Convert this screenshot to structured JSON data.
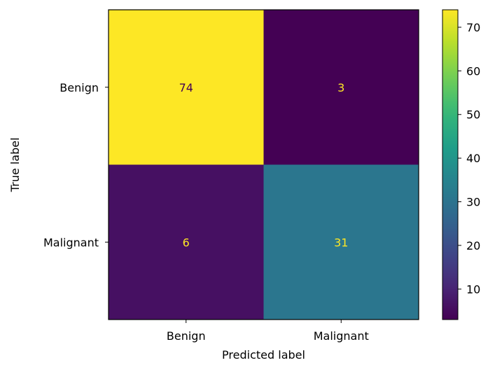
{
  "chart_data": {
    "type": "heatmap",
    "title": "",
    "xlabel": "Predicted label",
    "ylabel": "True label",
    "x_categories": [
      "Benign",
      "Malignant"
    ],
    "y_categories": [
      "Benign",
      "Malignant"
    ],
    "values": [
      [
        74,
        3
      ],
      [
        6,
        31
      ]
    ],
    "colorbar": {
      "min": 3,
      "max": 74,
      "ticks": [
        10,
        20,
        30,
        40,
        50,
        60,
        70
      ],
      "colormap": "viridis"
    },
    "text_colors": {
      "on_light": "#440154",
      "on_dark": "#fde725"
    }
  }
}
